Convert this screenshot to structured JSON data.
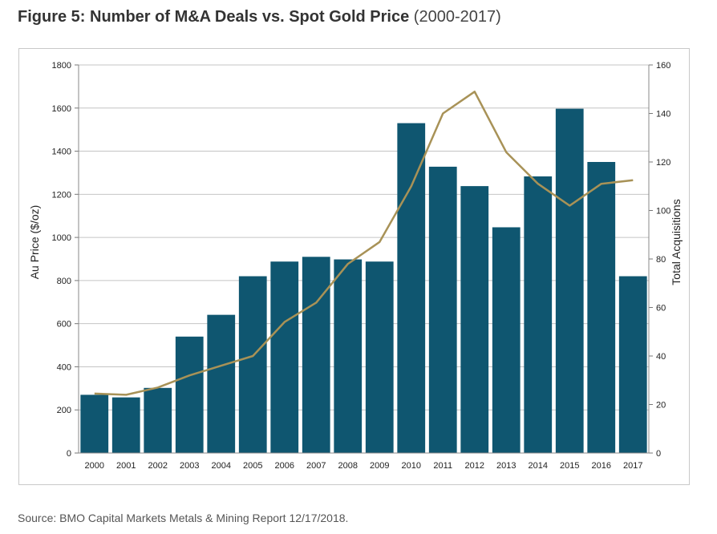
{
  "figure": {
    "title_bold": "Figure 5: Number of M&A Deals vs. Spot Gold Price",
    "title_light": "(2000-2017)"
  },
  "source_text": "Source: BMO Capital Markets Metals & Mining Report 12/17/2018.",
  "chart_data": {
    "type": "bar",
    "categories": [
      "2000",
      "2001",
      "2002",
      "2003",
      "2004",
      "2005",
      "2006",
      "2007",
      "2008",
      "2009",
      "2010",
      "2011",
      "2012",
      "2013",
      "2014",
      "2015",
      "2016",
      "2017"
    ],
    "series": [
      {
        "axis": "left",
        "type": "bar",
        "color": "#0f5670",
        "values": [
          270,
          258,
          302,
          540,
          641,
          820,
          888,
          910,
          898,
          888,
          1530,
          1328,
          1238,
          1047,
          1283,
          1597,
          1350,
          820
        ]
      },
      {
        "axis": "right",
        "type": "line",
        "color": "#a89257",
        "values": [
          24.5,
          24,
          27,
          32,
          36,
          40,
          54,
          62,
          78,
          87,
          110,
          140,
          149,
          124,
          111,
          102,
          111,
          112.5
        ]
      }
    ],
    "ylabel": "Au Price ($/oz)",
    "y2label": "Total Acquisitions",
    "ylim": [
      0,
      1800
    ],
    "y2lim": [
      0,
      160
    ],
    "yticks": [
      0,
      200,
      400,
      600,
      800,
      1000,
      1200,
      1400,
      1600,
      1800
    ],
    "y2ticks": [
      0,
      20,
      40,
      60,
      80,
      100,
      120,
      140,
      160
    ],
    "grid": true,
    "legend": "none"
  }
}
